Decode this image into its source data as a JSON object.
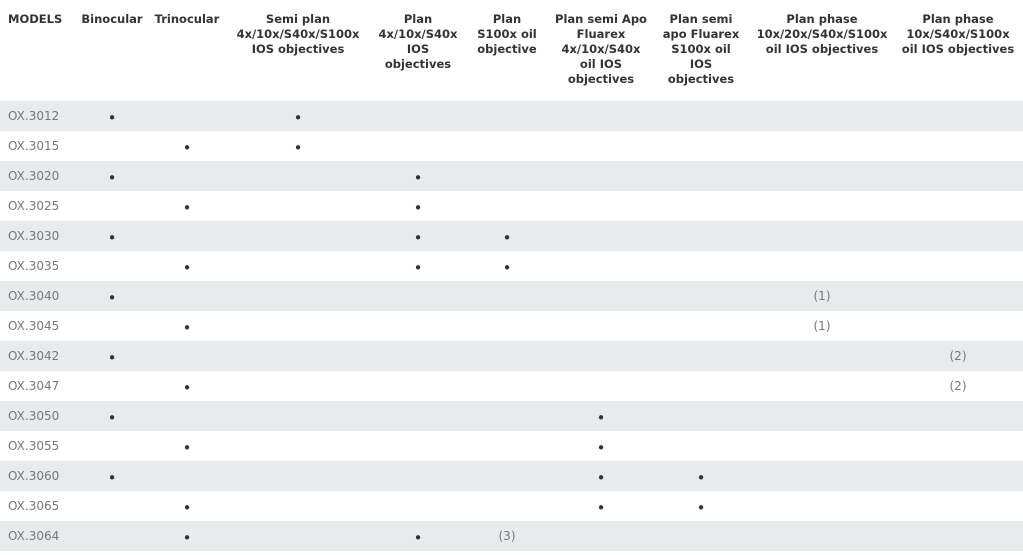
{
  "table": {
    "header": [
      [
        "MODELS"
      ],
      [
        "Binocular"
      ],
      [
        "Trinocular"
      ],
      [
        "Semi plan",
        "4x/10x/S40x/S100x",
        "IOS objectives"
      ],
      [
        "Plan",
        "4x/10x/S40x",
        "IOS",
        "objectives"
      ],
      [
        "Plan",
        "S100x oil",
        "objective"
      ],
      [
        "Plan semi Apo",
        "Fluarex",
        "4x/10x/S40x",
        "oil IOS",
        "objectives"
      ],
      [
        "Plan semi",
        "apo Fluarex",
        "S100x oil",
        "IOS",
        "objectives"
      ],
      [
        "Plan phase",
        "10x/20x/S40x/S100x",
        "oil IOS objectives"
      ],
      [
        "Plan phase",
        "10x/S40x/S100x",
        "oil IOS objectives"
      ]
    ],
    "rows": [
      [
        "OX.3012",
        "•",
        null,
        "•",
        null,
        null,
        null,
        null,
        null,
        null
      ],
      [
        "OX.3015",
        null,
        "•",
        "•",
        null,
        null,
        null,
        null,
        null,
        null
      ],
      [
        "OX.3020",
        "•",
        null,
        null,
        "•",
        null,
        null,
        null,
        null,
        null
      ],
      [
        "OX.3025",
        null,
        "•",
        null,
        "•",
        null,
        null,
        null,
        null,
        null
      ],
      [
        "OX.3030",
        "•",
        null,
        null,
        "•",
        "•",
        null,
        null,
        null,
        null
      ],
      [
        "OX.3035",
        null,
        "•",
        null,
        "•",
        "•",
        null,
        null,
        null,
        null
      ],
      [
        "OX.3040",
        "•",
        null,
        null,
        null,
        null,
        null,
        null,
        "(1)",
        null
      ],
      [
        "OX.3045",
        null,
        "•",
        null,
        null,
        null,
        null,
        null,
        "(1)",
        null
      ],
      [
        "OX.3042",
        "•",
        null,
        null,
        null,
        null,
        null,
        null,
        null,
        "(2)"
      ],
      [
        "OX.3047",
        null,
        "•",
        null,
        null,
        null,
        null,
        null,
        null,
        "(2)"
      ],
      [
        "OX.3050",
        "•",
        null,
        null,
        null,
        null,
        "•",
        null,
        null,
        null
      ],
      [
        "OX.3055",
        null,
        "•",
        null,
        null,
        null,
        "•",
        null,
        null,
        null
      ],
      [
        "OX.3060",
        "•",
        null,
        null,
        null,
        null,
        "•",
        "•",
        null,
        null
      ],
      [
        "OX.3065",
        null,
        "•",
        null,
        null,
        null,
        "•",
        "•",
        null,
        null
      ],
      [
        "OX.3064",
        null,
        "•",
        null,
        "•",
        "(3)",
        null,
        null,
        null,
        null
      ]
    ]
  }
}
